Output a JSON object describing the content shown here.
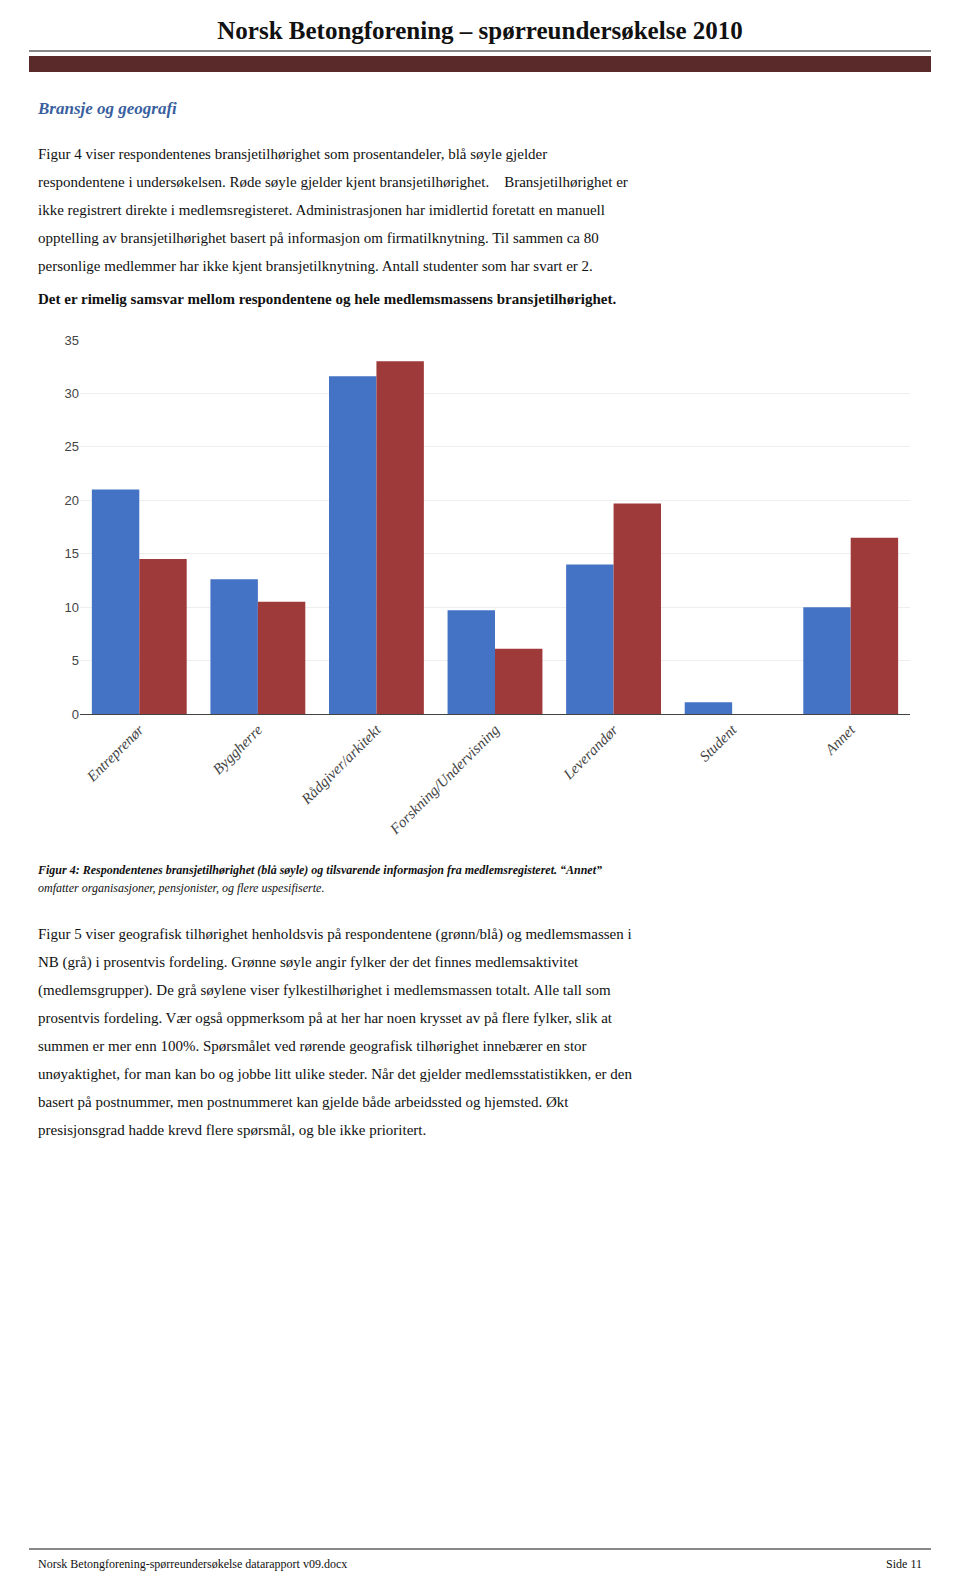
{
  "chart_data": {
    "type": "bar",
    "title": "Norsk Betongforening – spørreundersøkelse 2010",
    "subtitle": "Bransje og geografi",
    "categories": [
      "Entreprenør",
      "Byggherre",
      "Rådgiver/arkitekt",
      "Forskning/Undervisning",
      "Leverandør",
      "Student",
      "Annet"
    ],
    "series": [
      {
        "color": "#4472C4",
        "values": [
          21.0,
          12.6,
          31.6,
          9.7,
          14.0,
          1.1,
          10.0
        ]
      },
      {
        "color": "#9E3A3A",
        "values": [
          14.5,
          10.5,
          33.0,
          6.1,
          19.7,
          0.0,
          16.5
        ]
      }
    ],
    "ylim": [
      0,
      35
    ],
    "yticks": [
      0,
      5,
      10,
      15,
      20,
      25,
      30,
      35
    ],
    "grid": true,
    "annotations": [
      "Figur 4 viser respondentenes bransjetilhørighet som prosentandeler, blå søyle gjelder",
      "respondentene i undersøkelsen. Røde søyle gjelder kjent bransjetilhørighet.    Bransjetilhørighet er",
      "ikke registrert direkte i medlemsregisteret. Administrasjonen har imidlertid foretatt en manuell",
      "opptelling av bransjetilhørighet basert på informasjon om firmatilknytning. Til sammen ca 80",
      "personlige medlemmer har ikke kjent bransjetilknytning. Antall studenter som har svart er 2.",
      "Det er rimelig samsvar mellom respondentene og hele medlemsmassens bransjetilhørighet.",
      "Figur 4: Respondentenes bransjetilhørighet (blå søyle) og tilsvarende informasjon fra medlemsregisteret. “Annet”",
      "omfatter organisasjoner, pensjonister, og flere uspesifiserte.",
      "Figur 5 viser geografisk tilhørighet henholdsvis på respondentene (grønn/blå) og medlemsmassen i",
      "NB (grå) i prosentvis fordeling. Grønne søyle angir fylker der det finnes medlemsaktivitet",
      "(medlemsgrupper). De grå søylene viser fylkestilhørighet i medlemsmassen totalt. Alle tall som",
      "prosentvis fordeling. Vær også oppmerksom på at her har noen krysset av på flere fylker, slik at",
      "summen er mer enn 100%. Spørsmålet ved rørende geografisk tilhørighet innebærer en stor",
      "unøyaktighet, for man kan bo og jobbe litt ulike steder. Når det gjelder medlemsstatistikken, er den",
      "basert på postnummer, men postnummeret kan gjelde både arbeidssted og hjemsted. Økt",
      "presisjonsgrad hadde krevd flere spørsmål, og ble ikke prioritert.",
      "Norsk Betongforening-spørreundersøkelse datarapport v09.docx",
      "Side 11"
    ]
  }
}
